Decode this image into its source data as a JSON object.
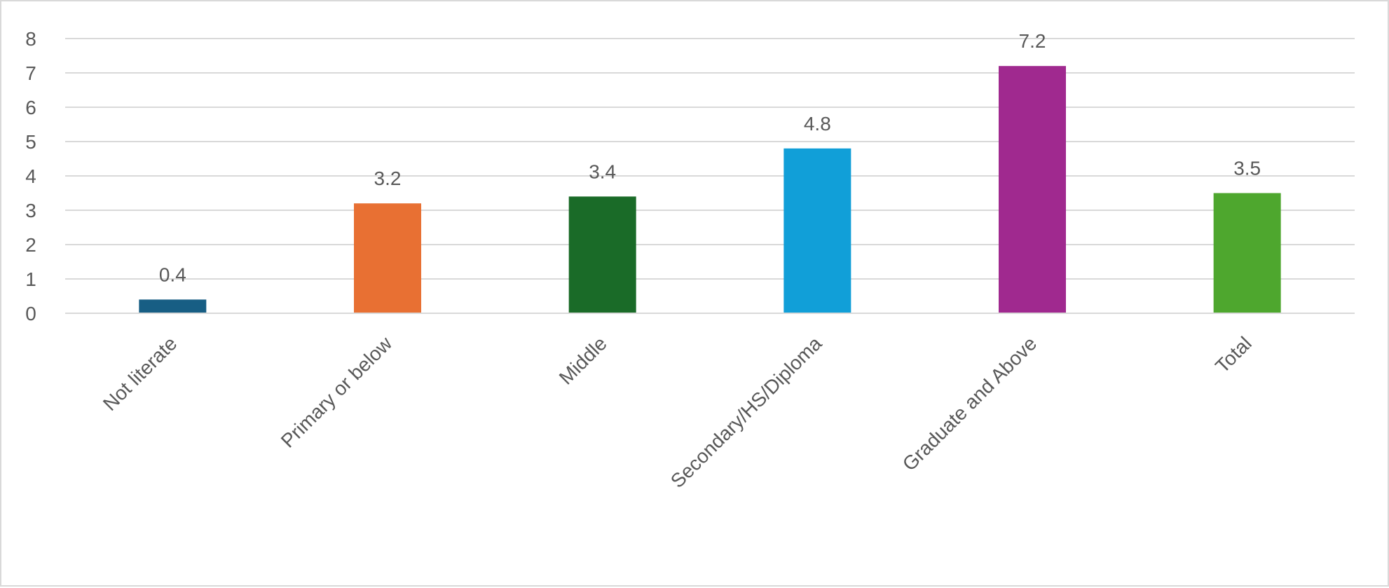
{
  "chart_data": {
    "type": "bar",
    "title": "",
    "xlabel": "",
    "ylabel": "",
    "categories": [
      "Not literate",
      "Primary or below",
      "Middle",
      "Secondary/HS/Diploma",
      "Graduate and Above",
      "Total"
    ],
    "values": [
      0.4,
      3.2,
      3.4,
      4.8,
      7.2,
      3.5
    ],
    "data_labels": [
      "0.4",
      "3.2",
      "3.4",
      "4.8",
      "7.2",
      "3.5"
    ],
    "colors": [
      "#175e84",
      "#e87033",
      "#1a6b28",
      "#119fd8",
      "#a0298f",
      "#4ea72e"
    ],
    "ylim": [
      0,
      8
    ],
    "yticks": [
      0,
      1,
      2,
      3,
      4,
      5,
      6,
      7,
      8
    ],
    "grid": true,
    "legend": "none"
  }
}
